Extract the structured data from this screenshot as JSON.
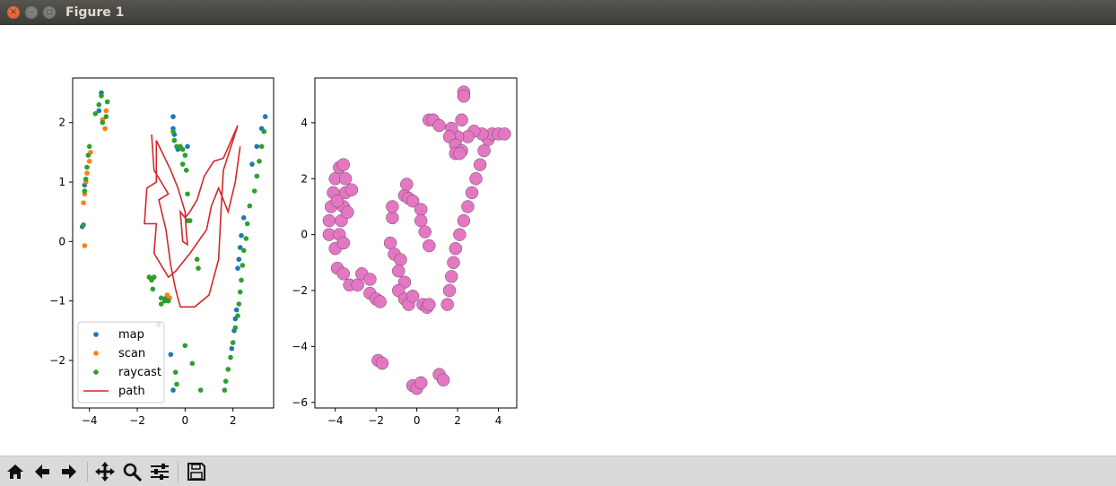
{
  "window": {
    "title": "Figure 1"
  },
  "toolbar": {
    "buttons": [
      {
        "name": "home-button",
        "icon": "home-icon"
      },
      {
        "name": "back-button",
        "icon": "arrow-left-icon"
      },
      {
        "name": "forward-button",
        "icon": "arrow-right-icon"
      },
      {
        "name": "pan-button",
        "icon": "move-icon"
      },
      {
        "name": "zoom-button",
        "icon": "magnifier-icon"
      },
      {
        "name": "configure-subplots-button",
        "icon": "sliders-icon"
      },
      {
        "name": "save-button",
        "icon": "floppy-disk-icon"
      }
    ]
  },
  "chart_data": [
    {
      "type": "scatter",
      "xlim": [
        -4.7,
        3.7
      ],
      "ylim": [
        -2.8,
        2.75
      ],
      "xticks": [
        -4,
        -2,
        0,
        2
      ],
      "yticks": [
        -2,
        -1,
        0,
        1,
        2
      ],
      "legend": {
        "placement": "lower-left",
        "entries": [
          "map",
          "scan",
          "raycast",
          "path"
        ]
      },
      "colors": {
        "map": "#1f77b4",
        "scan": "#ff7f0e",
        "raycast": "#2ca02c",
        "path": "#d62728"
      },
      "series": [
        {
          "name": "map",
          "points": [
            [
              -4.3,
              0.25
            ],
            [
              -4.2,
              0.95
            ],
            [
              -3.5,
              2.5
            ],
            [
              -3.6,
              2.2
            ],
            [
              -0.5,
              2.1
            ],
            [
              -0.5,
              1.9
            ],
            [
              -0.45,
              1.8
            ],
            [
              -0.3,
              1.55
            ],
            [
              0.1,
              1.6
            ],
            [
              -1.1,
              -1.4
            ],
            [
              -0.5,
              -2.5
            ],
            [
              -0.6,
              -1.9
            ],
            [
              -0.8,
              -0.95
            ],
            [
              2.2,
              -0.45
            ],
            [
              2.25,
              -0.3
            ],
            [
              2.3,
              -0.1
            ],
            [
              2.35,
              0.1
            ],
            [
              2.45,
              0.4
            ],
            [
              2.8,
              1.3
            ],
            [
              3.0,
              1.6
            ],
            [
              3.2,
              1.9
            ],
            [
              3.35,
              2.1
            ],
            [
              2.05,
              -1.5
            ],
            [
              2.1,
              -1.3
            ],
            [
              2.15,
              -1.15
            ],
            [
              1.95,
              -1.8
            ]
          ]
        },
        {
          "name": "scan",
          "points": [
            [
              -4.2,
              -0.07
            ],
            [
              -4.25,
              0.65
            ],
            [
              -4.2,
              0.8
            ],
            [
              -4.15,
              1.0
            ],
            [
              -4.1,
              1.15
            ],
            [
              -4.0,
              1.35
            ],
            [
              -3.95,
              1.5
            ],
            [
              -3.35,
              1.9
            ],
            [
              -3.45,
              2.05
            ],
            [
              -3.3,
              2.2
            ],
            [
              -0.75,
              -0.9
            ],
            [
              -0.65,
              -0.95
            ]
          ]
        },
        {
          "name": "raycast",
          "points": [
            [
              -4.25,
              0.28
            ],
            [
              -4.2,
              0.85
            ],
            [
              -4.15,
              1.05
            ],
            [
              -4.1,
              1.25
            ],
            [
              -4.05,
              1.45
            ],
            [
              -4.0,
              1.6
            ],
            [
              -3.75,
              2.15
            ],
            [
              -3.6,
              2.3
            ],
            [
              -3.5,
              2.45
            ],
            [
              -3.45,
              2.0
            ],
            [
              -3.3,
              2.1
            ],
            [
              -3.25,
              2.35
            ],
            [
              -0.5,
              1.85
            ],
            [
              -0.45,
              1.7
            ],
            [
              -0.35,
              1.6
            ],
            [
              -0.2,
              1.6
            ],
            [
              -0.1,
              1.55
            ],
            [
              0.0,
              1.45
            ],
            [
              -0.1,
              1.3
            ],
            [
              0.05,
              1.2
            ],
            [
              0.1,
              0.8
            ],
            [
              0.1,
              0.35
            ],
            [
              0.2,
              0.35
            ],
            [
              0.5,
              -0.3
            ],
            [
              0.55,
              -0.45
            ],
            [
              -1.5,
              -0.6
            ],
            [
              -1.4,
              -0.65
            ],
            [
              -1.3,
              -0.6
            ],
            [
              -1.35,
              -0.8
            ],
            [
              -1.0,
              -0.95
            ],
            [
              -0.85,
              -1.0
            ],
            [
              -1.0,
              -1.05
            ],
            [
              -0.7,
              -1.0
            ],
            [
              0.0,
              -1.75
            ],
            [
              0.3,
              -2.05
            ],
            [
              0.65,
              -2.5
            ],
            [
              -0.4,
              -2.2
            ],
            [
              -0.35,
              -2.4
            ],
            [
              3.3,
              1.85
            ],
            [
              3.2,
              1.6
            ],
            [
              3.1,
              1.35
            ],
            [
              3.0,
              1.1
            ],
            [
              2.9,
              0.85
            ],
            [
              2.7,
              0.6
            ],
            [
              2.6,
              0.3
            ],
            [
              2.55,
              0.05
            ],
            [
              2.45,
              -0.15
            ],
            [
              2.4,
              -0.4
            ],
            [
              2.35,
              -0.65
            ],
            [
              2.3,
              -0.85
            ],
            [
              2.25,
              -1.05
            ],
            [
              2.2,
              -1.25
            ],
            [
              2.1,
              -1.45
            ],
            [
              2.0,
              -1.7
            ],
            [
              1.9,
              -1.95
            ],
            [
              1.8,
              -2.15
            ],
            [
              1.7,
              -2.35
            ],
            [
              1.65,
              -2.5
            ]
          ]
        },
        {
          "name": "path",
          "line": true,
          "points": [
            [
              -1.4,
              1.8
            ],
            [
              -1.3,
              1.2
            ],
            [
              -0.7,
              0.8
            ],
            [
              -1.1,
              0.7
            ],
            [
              -0.8,
              0.2
            ],
            [
              -0.6,
              -0.4
            ],
            [
              -0.4,
              -0.8
            ],
            [
              -0.2,
              -1.1
            ],
            [
              0.4,
              -1.1
            ],
            [
              1.0,
              -0.9
            ],
            [
              1.4,
              -0.3
            ],
            [
              1.5,
              0.5
            ],
            [
              1.6,
              1.2
            ],
            [
              2.0,
              1.7
            ],
            [
              2.2,
              1.95
            ],
            [
              1.6,
              1.4
            ],
            [
              1.2,
              1.35
            ],
            [
              0.8,
              1.1
            ],
            [
              0.5,
              0.7
            ],
            [
              0.2,
              0.5
            ],
            [
              0.0,
              0.4
            ],
            [
              -0.2,
              0.5
            ],
            [
              -0.1,
              0.0
            ],
            [
              0.1,
              -0.05
            ],
            [
              0.05,
              0.15
            ],
            [
              0.0,
              0.5
            ],
            [
              -0.3,
              0.9
            ],
            [
              -0.6,
              1.2
            ],
            [
              -1.2,
              1.7
            ],
            [
              -1.2,
              1.0
            ],
            [
              -1.6,
              0.9
            ],
            [
              -1.7,
              0.3
            ],
            [
              -1.2,
              0.3
            ],
            [
              -1.3,
              -0.2
            ],
            [
              -0.7,
              -0.6
            ],
            [
              -0.4,
              -0.5
            ],
            [
              0.2,
              -0.2
            ],
            [
              0.9,
              0.2
            ],
            [
              1.1,
              0.6
            ],
            [
              1.4,
              0.9
            ],
            [
              1.8,
              0.5
            ],
            [
              2.1,
              1.0
            ],
            [
              2.3,
              1.6
            ]
          ]
        }
      ]
    },
    {
      "type": "scatter",
      "xlim": [
        -5.0,
        4.9
      ],
      "ylim": [
        -6.2,
        5.6
      ],
      "xticks": [
        -4,
        -2,
        0,
        2,
        4
      ],
      "yticks": [
        -6,
        -4,
        -2,
        0,
        2,
        4
      ],
      "colors": {
        "points": "#e377c2"
      },
      "series": [
        {
          "name": "",
          "points": [
            [
              -4.3,
              0.5
            ],
            [
              -4.3,
              0.0
            ],
            [
              -4.2,
              1.0
            ],
            [
              -4.1,
              1.5
            ],
            [
              -4.0,
              2.0
            ],
            [
              -3.8,
              2.4
            ],
            [
              -3.6,
              2.5
            ],
            [
              -3.5,
              2.0
            ],
            [
              -3.5,
              1.5
            ],
            [
              -3.6,
              1.0
            ],
            [
              -3.7,
              0.5
            ],
            [
              -3.8,
              0.0
            ],
            [
              -4.0,
              -0.5
            ],
            [
              -3.9,
              1.2
            ],
            [
              -3.2,
              1.6
            ],
            [
              -3.4,
              0.8
            ],
            [
              -3.6,
              -0.3
            ],
            [
              -3.9,
              -1.2
            ],
            [
              -3.6,
              -1.4
            ],
            [
              -3.3,
              -1.8
            ],
            [
              -2.9,
              -1.8
            ],
            [
              -2.7,
              -1.4
            ],
            [
              -2.3,
              -1.6
            ],
            [
              -2.3,
              -2.1
            ],
            [
              -2.0,
              -2.3
            ],
            [
              -1.8,
              -2.4
            ],
            [
              -1.3,
              -0.3
            ],
            [
              -1.1,
              -0.7
            ],
            [
              -0.8,
              -0.9
            ],
            [
              -0.9,
              -1.3
            ],
            [
              -0.6,
              -1.7
            ],
            [
              -0.9,
              -2.0
            ],
            [
              -0.6,
              -2.3
            ],
            [
              -0.4,
              -2.5
            ],
            [
              -0.2,
              -2.2
            ],
            [
              0.3,
              -2.5
            ],
            [
              0.5,
              -2.6
            ],
            [
              0.6,
              -2.5
            ],
            [
              -0.6,
              1.4
            ],
            [
              -0.5,
              1.8
            ],
            [
              -0.4,
              1.3
            ],
            [
              -0.2,
              1.2
            ],
            [
              0.2,
              0.9
            ],
            [
              0.2,
              0.5
            ],
            [
              0.4,
              0.1
            ],
            [
              0.6,
              -0.4
            ],
            [
              -1.2,
              0.6
            ],
            [
              -1.2,
              1.0
            ],
            [
              1.5,
              -2.5
            ],
            [
              1.6,
              -2.0
            ],
            [
              1.7,
              -1.5
            ],
            [
              1.8,
              -1.0
            ],
            [
              1.9,
              -0.5
            ],
            [
              2.1,
              0.0
            ],
            [
              2.3,
              0.5
            ],
            [
              2.5,
              1.0
            ],
            [
              2.7,
              1.5
            ],
            [
              2.9,
              2.0
            ],
            [
              3.1,
              2.5
            ],
            [
              3.3,
              3.0
            ],
            [
              3.5,
              3.4
            ],
            [
              3.7,
              3.6
            ],
            [
              4.0,
              3.6
            ],
            [
              4.3,
              3.6
            ],
            [
              3.2,
              3.6
            ],
            [
              2.8,
              3.7
            ],
            [
              2.5,
              3.5
            ],
            [
              2.0,
              3.5
            ],
            [
              1.7,
              3.8
            ],
            [
              1.6,
              3.5
            ],
            [
              1.9,
              3.2
            ],
            [
              2.2,
              3.0
            ],
            [
              0.6,
              4.1
            ],
            [
              0.8,
              4.1
            ],
            [
              1.1,
              3.9
            ],
            [
              2.2,
              4.1
            ],
            [
              2.3,
              5.1
            ],
            [
              2.3,
              4.95
            ],
            [
              1.9,
              2.9
            ],
            [
              2.1,
              2.9
            ],
            [
              -1.9,
              -4.5
            ],
            [
              -1.7,
              -4.6
            ],
            [
              -0.2,
              -5.4
            ],
            [
              0.0,
              -5.5
            ],
            [
              0.2,
              -5.3
            ],
            [
              1.1,
              -5.0
            ],
            [
              1.3,
              -5.2
            ]
          ]
        }
      ]
    }
  ]
}
